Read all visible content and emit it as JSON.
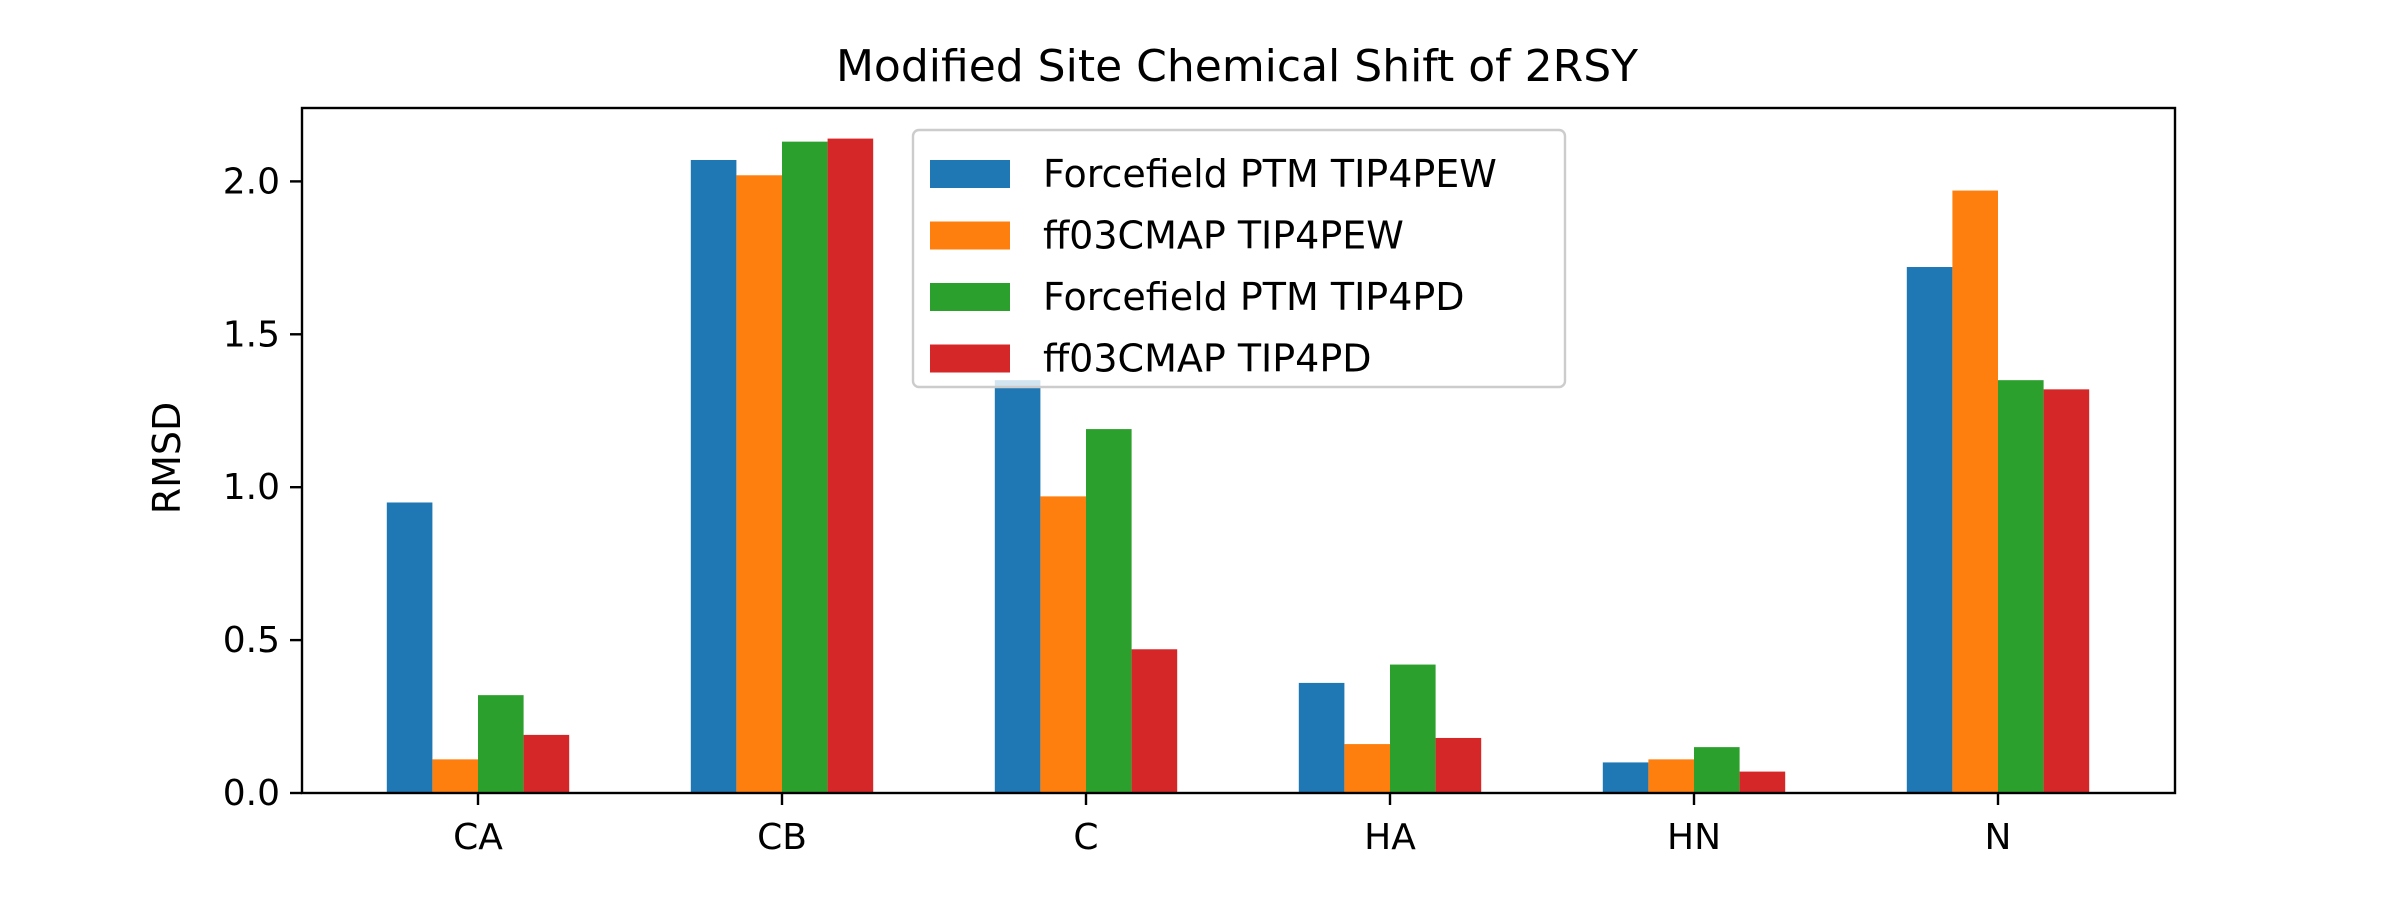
{
  "chart_data": {
    "type": "bar",
    "title": "Modified Site Chemical Shift of 2RSY",
    "xlabel": "",
    "ylabel": "RMSD",
    "categories": [
      "CA",
      "CB",
      "C",
      "HA",
      "HN",
      "N"
    ],
    "ylim": [
      0,
      2.24
    ],
    "yticks": [
      "0.0",
      "0.5",
      "1.0",
      "1.5",
      "2.0"
    ],
    "grid": false,
    "legend_position": "upper-center",
    "series": [
      {
        "name": "Forcefield PTM TIP4PEW",
        "color": "#1f77b4",
        "values": [
          0.95,
          2.07,
          1.35,
          0.36,
          0.1,
          1.72
        ]
      },
      {
        "name": "ff03CMAP TIP4PEW",
        "color": "#ff7f0e",
        "values": [
          0.11,
          2.02,
          0.97,
          0.16,
          0.11,
          1.97
        ]
      },
      {
        "name": "Forcefield PTM TIP4PD",
        "color": "#2ca02c",
        "values": [
          0.32,
          2.13,
          1.19,
          0.42,
          0.15,
          1.35
        ]
      },
      {
        "name": "ff03CMAP TIP4PD",
        "color": "#d62728",
        "values": [
          0.19,
          2.14,
          0.47,
          0.18,
          0.07,
          1.32
        ]
      }
    ]
  }
}
